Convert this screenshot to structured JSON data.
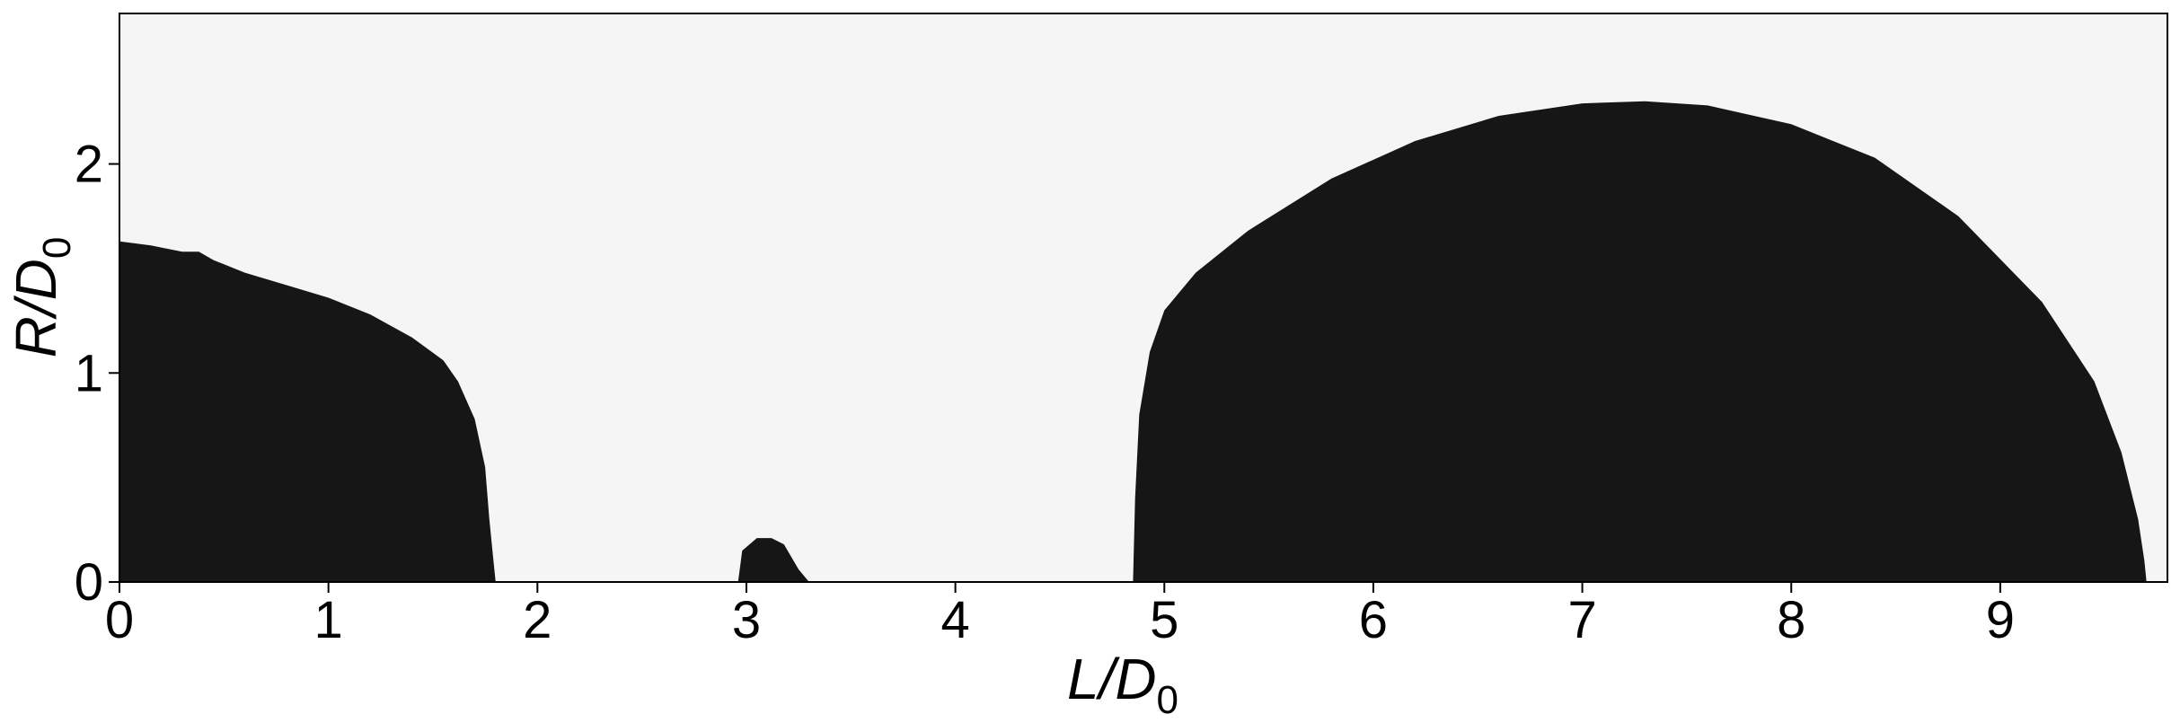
{
  "chart_data": {
    "type": "area",
    "xlabel": "L/D0",
    "ylabel": "R/D0",
    "xlabel_parts": {
      "main": "L/D",
      "sub": "0"
    },
    "ylabel_parts": {
      "main": "R/D",
      "sub": "0"
    },
    "xlim": [
      0,
      9.8
    ],
    "ylim": [
      0,
      2.72
    ],
    "xticks": [
      0,
      1,
      2,
      3,
      4,
      5,
      6,
      7,
      8,
      9
    ],
    "yticks": [
      0,
      1,
      2
    ],
    "grid": false,
    "colors": {
      "background": "#f5f5f5",
      "region": "#161616",
      "axes": "#000000"
    },
    "regions": [
      {
        "points": [
          [
            0,
            0
          ],
          [
            0,
            1.63
          ],
          [
            0.15,
            1.61
          ],
          [
            0.3,
            1.58
          ],
          [
            0.38,
            1.58
          ],
          [
            0.45,
            1.54
          ],
          [
            0.6,
            1.48
          ],
          [
            0.8,
            1.42
          ],
          [
            1.0,
            1.36
          ],
          [
            1.2,
            1.28
          ],
          [
            1.4,
            1.17
          ],
          [
            1.55,
            1.06
          ],
          [
            1.62,
            0.96
          ],
          [
            1.7,
            0.78
          ],
          [
            1.75,
            0.55
          ],
          [
            1.77,
            0.3
          ],
          [
            1.79,
            0.1
          ],
          [
            1.8,
            0
          ]
        ]
      },
      {
        "points": [
          [
            2.96,
            0
          ],
          [
            2.98,
            0.15
          ],
          [
            3.05,
            0.21
          ],
          [
            3.12,
            0.21
          ],
          [
            3.18,
            0.18
          ],
          [
            3.25,
            0.06
          ],
          [
            3.3,
            0
          ]
        ]
      },
      {
        "points": [
          [
            4.85,
            0
          ],
          [
            4.86,
            0.4
          ],
          [
            4.88,
            0.8
          ],
          [
            4.93,
            1.1
          ],
          [
            5.0,
            1.3
          ],
          [
            5.15,
            1.48
          ],
          [
            5.4,
            1.68
          ],
          [
            5.8,
            1.93
          ],
          [
            6.2,
            2.11
          ],
          [
            6.6,
            2.23
          ],
          [
            7.0,
            2.29
          ],
          [
            7.3,
            2.3
          ],
          [
            7.6,
            2.28
          ],
          [
            8.0,
            2.19
          ],
          [
            8.4,
            2.03
          ],
          [
            8.8,
            1.75
          ],
          [
            9.2,
            1.34
          ],
          [
            9.45,
            0.96
          ],
          [
            9.58,
            0.62
          ],
          [
            9.66,
            0.3
          ],
          [
            9.69,
            0.1
          ],
          [
            9.7,
            0
          ]
        ]
      }
    ]
  }
}
